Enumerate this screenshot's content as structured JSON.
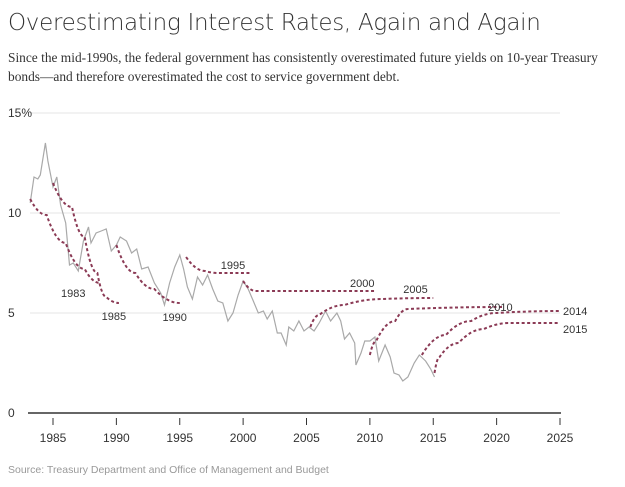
{
  "title": "Overestimating Interest Rates, Again and Again",
  "subtitle": "Since the mid-1990s, the federal government has consistently overestimated future yields on 10-year Treasury bonds—and therefore overestimated the cost to service government debt.",
  "source": "Source: Treasury Department and Office of Management and Budget",
  "chart_data": {
    "type": "line",
    "xlim": [
      1983,
      2025
    ],
    "ylim": [
      0,
      15
    ],
    "grid": true,
    "x_ticks": [
      "1985",
      "1990",
      "1995",
      "2000",
      "2005",
      "2010",
      "2015",
      "2020",
      "2025"
    ],
    "y_ticks": [
      "0",
      "5",
      "10",
      "15%"
    ],
    "colors": {
      "actual": "#a9a9a9",
      "projection": "#8b3a55"
    },
    "actual": [
      [
        1983.2,
        10.5
      ],
      [
        1983.5,
        11.8
      ],
      [
        1983.8,
        11.7
      ],
      [
        1984.0,
        11.9
      ],
      [
        1984.4,
        13.5
      ],
      [
        1984.6,
        12.6
      ],
      [
        1985.0,
        11.3
      ],
      [
        1985.3,
        11.8
      ],
      [
        1985.6,
        10.4
      ],
      [
        1986.0,
        9.5
      ],
      [
        1986.3,
        7.4
      ],
      [
        1986.6,
        7.5
      ],
      [
        1987.0,
        7.1
      ],
      [
        1987.4,
        8.6
      ],
      [
        1987.8,
        9.3
      ],
      [
        1988.0,
        8.5
      ],
      [
        1988.4,
        9.0
      ],
      [
        1988.8,
        9.1
      ],
      [
        1989.2,
        9.2
      ],
      [
        1989.6,
        8.1
      ],
      [
        1990.0,
        8.4
      ],
      [
        1990.3,
        8.8
      ],
      [
        1990.8,
        8.6
      ],
      [
        1991.2,
        8.0
      ],
      [
        1991.6,
        8.2
      ],
      [
        1992.0,
        7.2
      ],
      [
        1992.5,
        7.3
      ],
      [
        1993.0,
        6.5
      ],
      [
        1993.5,
        6.0
      ],
      [
        1993.8,
        5.4
      ],
      [
        1994.2,
        6.5
      ],
      [
        1994.6,
        7.3
      ],
      [
        1995.0,
        7.9
      ],
      [
        1995.3,
        7.2
      ],
      [
        1995.6,
        6.3
      ],
      [
        1996.0,
        5.7
      ],
      [
        1996.4,
        6.8
      ],
      [
        1996.8,
        6.4
      ],
      [
        1997.2,
        6.9
      ],
      [
        1997.6,
        6.2
      ],
      [
        1998.0,
        5.6
      ],
      [
        1998.4,
        5.5
      ],
      [
        1998.8,
        4.6
      ],
      [
        1999.2,
        5.0
      ],
      [
        1999.6,
        5.9
      ],
      [
        2000.0,
        6.6
      ],
      [
        2000.4,
        6.2
      ],
      [
        2000.8,
        5.6
      ],
      [
        2001.2,
        5.0
      ],
      [
        2001.6,
        5.1
      ],
      [
        2001.9,
        4.7
      ],
      [
        2002.3,
        5.1
      ],
      [
        2002.7,
        4.0
      ],
      [
        2003.0,
        4.0
      ],
      [
        2003.4,
        3.4
      ],
      [
        2003.6,
        4.3
      ],
      [
        2004.0,
        4.1
      ],
      [
        2004.4,
        4.6
      ],
      [
        2004.8,
        4.1
      ],
      [
        2005.2,
        4.3
      ],
      [
        2005.6,
        4.1
      ],
      [
        2006.0,
        4.5
      ],
      [
        2006.5,
        5.1
      ],
      [
        2006.9,
        4.6
      ],
      [
        2007.4,
        5.0
      ],
      [
        2007.7,
        4.6
      ],
      [
        2008.0,
        3.7
      ],
      [
        2008.4,
        4.0
      ],
      [
        2008.8,
        3.5
      ],
      [
        2008.9,
        2.4
      ],
      [
        2009.3,
        3.0
      ],
      [
        2009.6,
        3.6
      ],
      [
        2010.0,
        3.6
      ],
      [
        2010.4,
        3.8
      ],
      [
        2010.7,
        2.6
      ],
      [
        2011.2,
        3.4
      ],
      [
        2011.6,
        2.8
      ],
      [
        2011.9,
        2.0
      ],
      [
        2012.3,
        1.9
      ],
      [
        2012.6,
        1.6
      ],
      [
        2013.0,
        1.8
      ],
      [
        2013.5,
        2.5
      ],
      [
        2013.9,
        2.9
      ],
      [
        2014.4,
        2.6
      ],
      [
        2014.8,
        2.2
      ],
      [
        2015.1,
        1.8
      ]
    ],
    "projections": [
      {
        "name": "1983",
        "label_at": [
          1986.6,
          6.0
        ],
        "points": [
          [
            1983.2,
            10.7
          ],
          [
            1984.5,
            9.9
          ],
          [
            1986,
            8.5
          ],
          [
            1987.5,
            7.2
          ],
          [
            1988.7,
            6.5
          ]
        ]
      },
      {
        "name": "1985",
        "label_at": [
          1989.8,
          4.85
        ],
        "points": [
          [
            1985,
            11.5
          ],
          [
            1986.5,
            10.3
          ],
          [
            1987.5,
            8.8
          ],
          [
            1988.5,
            7.0
          ],
          [
            1989.2,
            5.8
          ],
          [
            1990.2,
            5.5
          ]
        ]
      },
      {
        "name": "1990",
        "label_at": [
          1994.6,
          4.8
        ],
        "points": [
          [
            1990,
            8.4
          ],
          [
            1991.5,
            7.0
          ],
          [
            1993,
            6.2
          ],
          [
            1995,
            5.5
          ]
        ]
      },
      {
        "name": "1995",
        "label_at": [
          1999.2,
          7.4
        ],
        "points": [
          [
            1995.5,
            7.8
          ],
          [
            1997,
            7.1
          ],
          [
            1998,
            7.0
          ],
          [
            2000.5,
            7.0
          ]
        ]
      },
      {
        "name": "2000",
        "label_at": [
          2009.4,
          6.5
        ],
        "points": [
          [
            2000,
            6.6
          ],
          [
            2001,
            6.1
          ],
          [
            2010.5,
            6.1
          ]
        ]
      },
      {
        "name": "2005",
        "label_at": [
          2013.6,
          6.2
        ],
        "points": [
          [
            2005.3,
            4.3
          ],
          [
            2006,
            4.9
          ],
          [
            2008,
            5.4
          ],
          [
            2011,
            5.7
          ],
          [
            2015,
            5.75
          ]
        ]
      },
      {
        "name": "2010",
        "label_at": [
          2020.3,
          5.3
        ],
        "points": [
          [
            2010,
            2.9
          ],
          [
            2010.5,
            3.6
          ],
          [
            2012,
            4.6
          ],
          [
            2013,
            5.2
          ],
          [
            2020.5,
            5.3
          ]
        ]
      },
      {
        "name": "2014",
        "label_at": [
          2026.2,
          5.1
        ],
        "points": [
          [
            2014.1,
            2.9
          ],
          [
            2016,
            3.9
          ],
          [
            2018,
            4.6
          ],
          [
            2020,
            5.0
          ],
          [
            2025,
            5.1
          ]
        ]
      },
      {
        "name": "2015",
        "label_at": [
          2026.2,
          4.2
        ],
        "points": [
          [
            2015.1,
            2.0
          ],
          [
            2015.5,
            2.8
          ],
          [
            2017,
            3.5
          ],
          [
            2019,
            4.2
          ],
          [
            2021,
            4.5
          ],
          [
            2025,
            4.5
          ]
        ]
      }
    ]
  }
}
